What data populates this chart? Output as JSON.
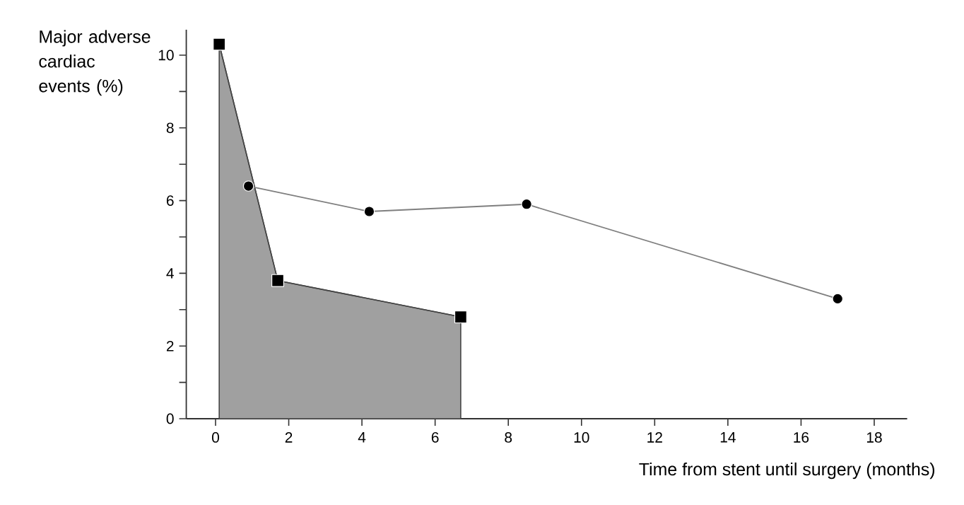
{
  "chart_data": {
    "type": "line",
    "xlabel": "Time from stent until surgery (months)",
    "ylabel": "Major adverse cardiac events (%)",
    "xlim": [
      -0.8,
      18.9
    ],
    "ylim": [
      0,
      10.7
    ],
    "xticks": [
      0,
      2,
      4,
      6,
      8,
      10,
      12,
      14,
      16,
      18
    ],
    "yticks": [
      0,
      {
        "value": 1,
        "label": null
      },
      2,
      {
        "value": 3,
        "label": null
      },
      4,
      {
        "value": 5,
        "label": null
      },
      6,
      {
        "value": 7,
        "label": null
      },
      8,
      {
        "value": 9,
        "label": null
      },
      10
    ],
    "grid": false,
    "series": [
      {
        "type": "area",
        "color": "#a0a0a0",
        "marker": "square",
        "x": [
          0.1,
          1.7,
          6.7
        ],
        "values": [
          10.3,
          3.8,
          2.8
        ]
      },
      {
        "color": "#7f7f7f",
        "marker": "circle",
        "x": [
          0.9,
          4.2,
          8.5,
          17.0
        ],
        "values": [
          6.4,
          5.7,
          5.9,
          3.3
        ]
      }
    ]
  }
}
